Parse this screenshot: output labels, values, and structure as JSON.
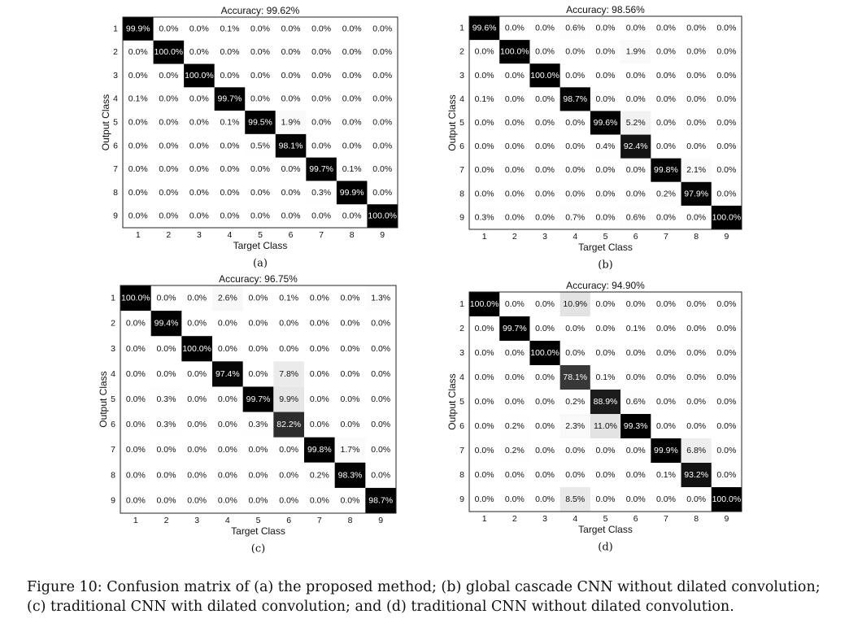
{
  "figure": {
    "caption_line1": "Figure 10: Confusion matrix of (a) the proposed method; (b) global cascade CNN without dilated convolution;",
    "caption_line2": "(c) traditional CNN with dilated convolution; and (d) traditional CNN without dilated convolution."
  },
  "chart_data": [
    {
      "type": "heatmap",
      "panel_label": "(a)",
      "title": "Accuracy: 99.62%",
      "xlabel": "Target Class",
      "ylabel": "Output Class",
      "x_ticks": [
        "1",
        "2",
        "3",
        "4",
        "5",
        "6",
        "7",
        "8",
        "9"
      ],
      "y_ticks": [
        "1",
        "2",
        "3",
        "4",
        "5",
        "6",
        "7",
        "8",
        "9"
      ],
      "cells": [
        [
          "99.9%",
          "0.0%",
          "0.0%",
          "0.1%",
          "0.0%",
          "0.0%",
          "0.0%",
          "0.0%",
          "0.0%"
        ],
        [
          "0.0%",
          "100.0%",
          "0.0%",
          "0.0%",
          "0.0%",
          "0.0%",
          "0.0%",
          "0.0%",
          "0.0%"
        ],
        [
          "0.0%",
          "0.0%",
          "100.0%",
          "0.0%",
          "0.0%",
          "0.0%",
          "0.0%",
          "0.0%",
          "0.0%"
        ],
        [
          "0.1%",
          "0.0%",
          "0.0%",
          "99.7%",
          "0.0%",
          "0.0%",
          "0.0%",
          "0.0%",
          "0.0%"
        ],
        [
          "0.0%",
          "0.0%",
          "0.0%",
          "0.1%",
          "99.5%",
          "1.9%",
          "0.0%",
          "0.0%",
          "0.0%"
        ],
        [
          "0.0%",
          "0.0%",
          "0.0%",
          "0.0%",
          "0.5%",
          "98.1%",
          "0.0%",
          "0.0%",
          "0.0%"
        ],
        [
          "0.0%",
          "0.0%",
          "0.0%",
          "0.0%",
          "0.0%",
          "0.0%",
          "99.7%",
          "0.1%",
          "0.0%"
        ],
        [
          "0.0%",
          "0.0%",
          "0.0%",
          "0.0%",
          "0.0%",
          "0.0%",
          "0.3%",
          "99.9%",
          "0.0%"
        ],
        [
          "0.0%",
          "0.0%",
          "0.0%",
          "0.0%",
          "0.0%",
          "0.0%",
          "0.0%",
          "0.0%",
          "100.0%"
        ]
      ]
    },
    {
      "type": "heatmap",
      "panel_label": "(b)",
      "title": "Accuracy: 98.56%",
      "xlabel": "Target Class",
      "ylabel": "Output Class",
      "x_ticks": [
        "1",
        "2",
        "3",
        "4",
        "5",
        "6",
        "7",
        "8",
        "9"
      ],
      "y_ticks": [
        "1",
        "2",
        "3",
        "4",
        "5",
        "6",
        "7",
        "8",
        "9"
      ],
      "cells": [
        [
          "99.6%",
          "0.0%",
          "0.0%",
          "0.6%",
          "0.0%",
          "0.0%",
          "0.0%",
          "0.0%",
          "0.0%"
        ],
        [
          "0.0%",
          "100.0%",
          "0.0%",
          "0.0%",
          "0.0%",
          "1.9%",
          "0.0%",
          "0.0%",
          "0.0%"
        ],
        [
          "0.0%",
          "0.0%",
          "100.0%",
          "0.0%",
          "0.0%",
          "0.0%",
          "0.0%",
          "0.0%",
          "0.0%"
        ],
        [
          "0.1%",
          "0.0%",
          "0.0%",
          "98.7%",
          "0.0%",
          "0.0%",
          "0.0%",
          "0.0%",
          "0.0%"
        ],
        [
          "0.0%",
          "0.0%",
          "0.0%",
          "0.0%",
          "99.6%",
          "5.2%",
          "0.0%",
          "0.0%",
          "0.0%"
        ],
        [
          "0.0%",
          "0.0%",
          "0.0%",
          "0.0%",
          "0.4%",
          "92.4%",
          "0.0%",
          "0.0%",
          "0.0%"
        ],
        [
          "0.0%",
          "0.0%",
          "0.0%",
          "0.0%",
          "0.0%",
          "0.0%",
          "99.8%",
          "2.1%",
          "0.0%"
        ],
        [
          "0.0%",
          "0.0%",
          "0.0%",
          "0.0%",
          "0.0%",
          "0.0%",
          "0.2%",
          "97.9%",
          "0.0%"
        ],
        [
          "0.3%",
          "0.0%",
          "0.0%",
          "0.7%",
          "0.0%",
          "0.6%",
          "0.0%",
          "0.0%",
          "100.0%"
        ]
      ]
    },
    {
      "type": "heatmap",
      "panel_label": "(c)",
      "title": "Accuracy: 96.75%",
      "xlabel": "Target Class",
      "ylabel": "Output Class",
      "x_ticks": [
        "1",
        "2",
        "3",
        "4",
        "5",
        "6",
        "7",
        "8",
        "9"
      ],
      "y_ticks": [
        "1",
        "2",
        "3",
        "4",
        "5",
        "6",
        "7",
        "8",
        "9"
      ],
      "cells": [
        [
          "100.0%",
          "0.0%",
          "0.0%",
          "2.6%",
          "0.0%",
          "0.1%",
          "0.0%",
          "0.0%",
          "1.3%"
        ],
        [
          "0.0%",
          "99.4%",
          "0.0%",
          "0.0%",
          "0.0%",
          "0.0%",
          "0.0%",
          "0.0%",
          "0.0%"
        ],
        [
          "0.0%",
          "0.0%",
          "100.0%",
          "0.0%",
          "0.0%",
          "0.0%",
          "0.0%",
          "0.0%",
          "0.0%"
        ],
        [
          "0.0%",
          "0.0%",
          "0.0%",
          "97.4%",
          "0.0%",
          "7.8%",
          "0.0%",
          "0.0%",
          "0.0%"
        ],
        [
          "0.0%",
          "0.3%",
          "0.0%",
          "0.0%",
          "99.7%",
          "9.9%",
          "0.0%",
          "0.0%",
          "0.0%"
        ],
        [
          "0.0%",
          "0.3%",
          "0.0%",
          "0.0%",
          "0.3%",
          "82.2%",
          "0.0%",
          "0.0%",
          "0.0%"
        ],
        [
          "0.0%",
          "0.0%",
          "0.0%",
          "0.0%",
          "0.0%",
          "0.0%",
          "99.8%",
          "1.7%",
          "0.0%"
        ],
        [
          "0.0%",
          "0.0%",
          "0.0%",
          "0.0%",
          "0.0%",
          "0.0%",
          "0.2%",
          "98.3%",
          "0.0%"
        ],
        [
          "0.0%",
          "0.0%",
          "0.0%",
          "0.0%",
          "0.0%",
          "0.0%",
          "0.0%",
          "0.0%",
          "98.7%"
        ]
      ]
    },
    {
      "type": "heatmap",
      "panel_label": "(d)",
      "title": "Accuracy: 94.90%",
      "xlabel": "Target Class",
      "ylabel": "Output Class",
      "x_ticks": [
        "1",
        "2",
        "3",
        "4",
        "5",
        "6",
        "7",
        "8",
        "9"
      ],
      "y_ticks": [
        "1",
        "2",
        "3",
        "4",
        "5",
        "6",
        "7",
        "8",
        "9"
      ],
      "cells": [
        [
          "100.0%",
          "0.0%",
          "0.0%",
          "10.9%",
          "0.0%",
          "0.0%",
          "0.0%",
          "0.0%",
          "0.0%"
        ],
        [
          "0.0%",
          "99.7%",
          "0.0%",
          "0.0%",
          "0.0%",
          "0.1%",
          "0.0%",
          "0.0%",
          "0.0%"
        ],
        [
          "0.0%",
          "0.0%",
          "100.0%",
          "0.0%",
          "0.0%",
          "0.0%",
          "0.0%",
          "0.0%",
          "0.0%"
        ],
        [
          "0.0%",
          "0.0%",
          "0.0%",
          "78.1%",
          "0.1%",
          "0.0%",
          "0.0%",
          "0.0%",
          "0.0%"
        ],
        [
          "0.0%",
          "0.0%",
          "0.0%",
          "0.2%",
          "88.9%",
          "0.6%",
          "0.0%",
          "0.0%",
          "0.0%"
        ],
        [
          "0.0%",
          "0.2%",
          "0.0%",
          "2.3%",
          "11.0%",
          "99.3%",
          "0.0%",
          "0.0%",
          "0.0%"
        ],
        [
          "0.0%",
          "0.2%",
          "0.0%",
          "0.0%",
          "0.0%",
          "0.0%",
          "99.9%",
          "6.8%",
          "0.0%"
        ],
        [
          "0.0%",
          "0.0%",
          "0.0%",
          "0.0%",
          "0.0%",
          "0.0%",
          "0.1%",
          "93.2%",
          "0.0%"
        ],
        [
          "0.0%",
          "0.0%",
          "0.0%",
          "8.5%",
          "0.0%",
          "0.0%",
          "0.0%",
          "0.0%",
          "100.0%"
        ]
      ]
    }
  ]
}
